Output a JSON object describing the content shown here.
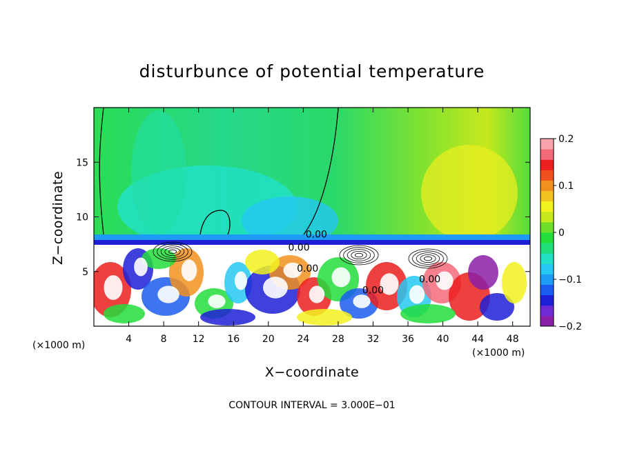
{
  "chart_data": {
    "type": "heatmap",
    "title": "disturbunce of potential temperature",
    "xlabel": "X−coordinate",
    "ylabel": "Z−coordinate",
    "x_unit_label_left": "(×1000 m)",
    "x_unit_label_right": "(×1000 m)",
    "x_ticks": [
      4,
      8,
      12,
      16,
      20,
      24,
      28,
      32,
      36,
      40,
      44,
      48
    ],
    "y_ticks": [
      5,
      10,
      15
    ],
    "xlim": [
      0,
      50
    ],
    "ylim": [
      0,
      20
    ],
    "colorbar": {
      "min": -0.2,
      "max": 0.2,
      "tick_values": [
        0.2,
        0.1,
        0,
        -0.1,
        -0.2
      ],
      "tick_labels": [
        "0.2",
        "0.1",
        "0",
        "−0.1",
        "−0.2"
      ],
      "colors": [
        "#8b1fa6",
        "#6f2ad6",
        "#1f1fd6",
        "#1a5cf0",
        "#1e9bf5",
        "#24c8f2",
        "#22e0c6",
        "#22de7a",
        "#22dd3c",
        "#6fe02a",
        "#c8e81e",
        "#f2f21e",
        "#f2c21e",
        "#f2901e",
        "#f0501e",
        "#ec1e1e",
        "#f56a7a",
        "#f8a3ac"
      ]
    },
    "contour_labels": [
      {
        "text": "0.00",
        "x": 25.5,
        "z": 8.1
      },
      {
        "text": "0.00",
        "x": 23.5,
        "z": 6.9
      },
      {
        "text": "0.00",
        "x": 24.5,
        "z": 5.0
      },
      {
        "text": "0.00",
        "x": 32.0,
        "z": 3.0
      },
      {
        "text": "0.00",
        "x": 38.5,
        "z": 4.0
      }
    ],
    "footer": "CONTOUR INTERVAL = 3.000E−01"
  }
}
